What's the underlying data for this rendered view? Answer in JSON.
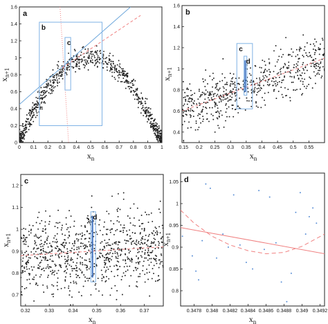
{
  "chart_data": [
    {
      "type": "scatter",
      "panel_label": "a",
      "xlabel": "x_n",
      "ylabel": "x_{n+1}",
      "xlim": [
        0,
        1
      ],
      "ylim": [
        0,
        1.6
      ],
      "xticks": [
        "0",
        "0.1",
        "0.2",
        "0.3",
        "0.4",
        "0.5",
        "0.6",
        "0.7",
        "0.8",
        "0.9",
        "1"
      ],
      "yticks": [
        "0",
        "0.2",
        "0.4",
        "0.6",
        "0.8",
        "1",
        "1.2",
        "1.4",
        "1.6"
      ],
      "model": {
        "kind": "quadratic_map",
        "r": 4.0,
        "noise": 0.06,
        "n": 900
      },
      "lines": [
        {
          "name": "linear-fit",
          "color": "#6fa8dc",
          "x": [
            0,
            0.78
          ],
          "y": [
            0.45,
            1.6
          ]
        },
        {
          "name": "quadratic-fit",
          "color": "#f08080",
          "dash": "4,3",
          "x": [
            0.3,
            0.85
          ],
          "y": [
            0.88,
            1.5
          ]
        },
        {
          "name": "vertical-dotted",
          "color": "#f08080",
          "dash": "1,2",
          "x": [
            0.285,
            0.345
          ],
          "y": [
            1.6,
            0.0
          ]
        }
      ],
      "boxes": [
        {
          "label": "b",
          "x": [
            0.14,
            0.58
          ],
          "y": [
            0.2,
            1.42
          ]
        },
        {
          "label": "c",
          "x": [
            0.32,
            0.36
          ],
          "y": [
            0.62,
            1.24
          ]
        }
      ],
      "markers": []
    },
    {
      "type": "scatter",
      "panel_label": "b",
      "xlabel": "x_n",
      "ylabel": "x_{n+1}",
      "xlim": [
        0.145,
        0.6
      ],
      "ylim": [
        0.3,
        1.6
      ],
      "xticks": [
        "0.15",
        "0.2",
        "0.25",
        "0.3",
        "0.35",
        "0.4",
        "0.45",
        "0.5",
        "0.55"
      ],
      "yticks": [
        "0.4",
        "0.6",
        "0.8",
        "1",
        "1.2",
        "1.4",
        "1.6"
      ],
      "model": {
        "kind": "linear_band",
        "slope": 1.1,
        "intercept": 0.44,
        "noise": 0.12,
        "n": 600
      },
      "lines": [
        {
          "name": "linear-fit",
          "color": "#f08080",
          "dash": "4,3",
          "x": [
            0.145,
            0.6
          ],
          "y": [
            0.6,
            1.1
          ]
        }
      ],
      "boxes": [
        {
          "label": "c",
          "x": [
            0.32,
            0.37
          ],
          "y": [
            0.62,
            1.24
          ]
        },
        {
          "label": "d",
          "x": [
            0.343,
            0.352
          ],
          "y": [
            0.75,
            1.12
          ]
        }
      ],
      "markers": [
        {
          "color": "#3b6fbf",
          "x": [
            0.347,
            0.347
          ],
          "y": [
            0.78,
            1.08
          ]
        }
      ]
    },
    {
      "type": "scatter",
      "panel_label": "c",
      "xlabel": "x_n",
      "ylabel": "x_{n+1}",
      "xlim": [
        0.318,
        0.378
      ],
      "ylim": [
        0.65,
        1.25
      ],
      "xticks": [
        "0.32",
        "0.33",
        "0.34",
        "0.35",
        "0.36",
        "0.37"
      ],
      "yticks": [
        "0.7",
        "0.8",
        "0.9",
        "1",
        "1.1",
        "1.2"
      ],
      "model": {
        "kind": "linear_band",
        "slope": 0.8,
        "intercept": 0.62,
        "noise": 0.09,
        "n": 900
      },
      "lines": [
        {
          "name": "linear-fit",
          "color": "#f08080",
          "dash": "4,3",
          "x": [
            0.318,
            0.378
          ],
          "y": [
            0.88,
            0.92
          ]
        }
      ],
      "boxes": [
        {
          "label": "d",
          "x": [
            0.3475,
            0.3495
          ],
          "y": [
            0.76,
            1.08
          ]
        }
      ],
      "markers": [
        {
          "color": "#3b6fbf",
          "x": [
            0.3482,
            0.3482
          ],
          "y": [
            0.78,
            1.06
          ]
        }
      ]
    },
    {
      "type": "scatter",
      "panel_label": "d",
      "xlabel": "x_n",
      "ylabel": "x_{n+1}",
      "xlim": [
        0.34765,
        0.34925
      ],
      "ylim": [
        0.765,
        1.07
      ],
      "xticks": [
        "0.3476",
        "0.3478",
        "0.348",
        "0.3482",
        "0.3484",
        "0.3486",
        "0.3488",
        "0.349",
        "0.3492"
      ],
      "yticks": [
        "0.8",
        "0.85",
        "0.9",
        "0.95",
        "1",
        "1.05"
      ],
      "points_x": [
        0.34767,
        0.34778,
        0.34782,
        0.34785,
        0.34789,
        0.34793,
        0.34798,
        0.34805,
        0.34812,
        0.34818,
        0.34824,
        0.34831,
        0.34838,
        0.34845,
        0.34852,
        0.34858,
        0.34864,
        0.34871,
        0.34877,
        0.34883,
        0.34888,
        0.34893,
        0.34898,
        0.34904,
        0.34908,
        0.34912,
        0.34916
      ],
      "points_y": [
        0.925,
        0.88,
        0.845,
        0.825,
        0.915,
        1.045,
        1.035,
        0.875,
        0.93,
        0.9,
        1.02,
        0.905,
        0.865,
        0.85,
        1.03,
        0.895,
        1.015,
        0.91,
        0.82,
        0.775,
        0.84,
        0.98,
        1.025,
        0.93,
        0.97,
        0.99,
        0.955
      ],
      "lines": [
        {
          "name": "linear-fit",
          "color": "#f08080",
          "x": [
            0.34765,
            0.34925
          ],
          "y": [
            0.945,
            0.885
          ]
        },
        {
          "name": "quadratic-fit",
          "color": "#f08080",
          "dash": "6,4",
          "x": [
            0.34765,
            0.3478,
            0.348,
            0.3482,
            0.3484,
            0.3486,
            0.3488,
            0.349,
            0.34925
          ],
          "y": [
            0.985,
            0.955,
            0.925,
            0.905,
            0.892,
            0.885,
            0.888,
            0.902,
            0.93
          ]
        }
      ],
      "boxes": [],
      "markers": []
    }
  ]
}
